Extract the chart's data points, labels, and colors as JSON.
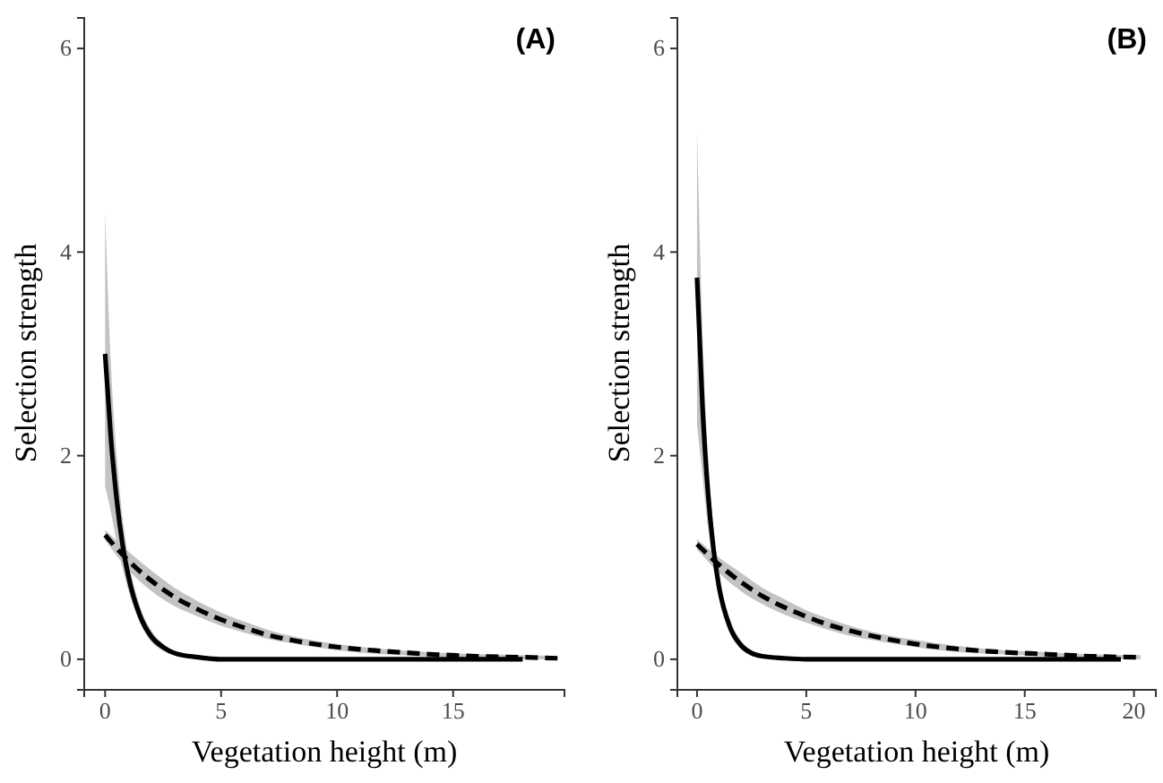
{
  "chart_data": [
    {
      "type": "line",
      "annotations": [
        "(A)"
      ],
      "xlabel": "Vegetation height (m)",
      "ylabel": "Selection strength",
      "xlim": [
        -0.9,
        19.8
      ],
      "xticks": [
        0,
        5,
        10,
        15
      ],
      "ylim": [
        -0.3,
        6.3
      ],
      "yticks": [
        0,
        2,
        4,
        6
      ],
      "grid": false,
      "marker": "none",
      "series": [
        {
          "color": "#000000",
          "line_style": "solid",
          "x": [
            0,
            0.25,
            0.5,
            0.75,
            1,
            1.5,
            2,
            2.5,
            3,
            4,
            5,
            7.5,
            10,
            12.5,
            15,
            18
          ],
          "values": [
            3.0,
            2.17,
            1.57,
            1.13,
            0.82,
            0.43,
            0.22,
            0.12,
            0.06,
            0.02,
            0,
            0,
            0,
            0,
            0,
            0
          ],
          "lower": [
            1.7,
            1.45,
            1.15,
            0.9,
            0.68,
            0.36,
            0.17,
            0.08,
            0.04,
            0.01,
            0,
            0,
            0,
            0,
            0,
            0
          ],
          "upper": [
            4.4,
            2.9,
            2.0,
            1.4,
            1.0,
            0.52,
            0.28,
            0.15,
            0.08,
            0.03,
            0.01,
            0,
            0,
            0,
            0,
            0
          ]
        },
        {
          "color": "#000000",
          "line_style": "dashed",
          "x": [
            0,
            1,
            2,
            3,
            4,
            5,
            6,
            7,
            8,
            10,
            12,
            14,
            16,
            18,
            19.5
          ],
          "values": [
            1.22,
            0.97,
            0.77,
            0.61,
            0.49,
            0.39,
            0.31,
            0.24,
            0.19,
            0.12,
            0.08,
            0.05,
            0.03,
            0.02,
            0.01
          ],
          "lower": [
            1.17,
            0.88,
            0.67,
            0.52,
            0.42,
            0.33,
            0.26,
            0.2,
            0.16,
            0.09,
            0.05,
            0.03,
            0.01,
            0,
            0
          ],
          "upper": [
            1.27,
            1.06,
            0.87,
            0.7,
            0.57,
            0.46,
            0.37,
            0.29,
            0.23,
            0.15,
            0.1,
            0.07,
            0.05,
            0.04,
            0.03
          ]
        }
      ]
    },
    {
      "type": "line",
      "annotations": [
        "(B)"
      ],
      "xlabel": "Vegetation height (m)",
      "ylabel": "Selection strength",
      "xlim": [
        -0.9,
        21
      ],
      "xticks": [
        0,
        5,
        10,
        15,
        20
      ],
      "ylim": [
        -0.3,
        6.3
      ],
      "yticks": [
        0,
        2,
        4,
        6
      ],
      "grid": false,
      "marker": "none",
      "series": [
        {
          "color": "#000000",
          "line_style": "solid",
          "x": [
            0,
            0.25,
            0.5,
            0.75,
            1,
            1.5,
            2,
            2.5,
            3,
            4,
            5,
            7.5,
            10,
            12.5,
            15,
            17.5,
            19.4
          ],
          "values": [
            3.75,
            2.48,
            1.64,
            1.09,
            0.72,
            0.32,
            0.14,
            0.06,
            0.03,
            0.01,
            0,
            0,
            0,
            0,
            0,
            0,
            0
          ],
          "lower": [
            2.3,
            1.8,
            1.3,
            0.9,
            0.6,
            0.26,
            0.1,
            0.04,
            0.02,
            0,
            0,
            0,
            0,
            0,
            0,
            0,
            0
          ],
          "upper": [
            5.2,
            3.2,
            2.0,
            1.3,
            0.85,
            0.4,
            0.19,
            0.09,
            0.05,
            0.02,
            0.01,
            0,
            0,
            0,
            0,
            0,
            0
          ]
        },
        {
          "color": "#000000",
          "line_style": "dashed",
          "x": [
            0,
            1,
            2,
            3,
            4,
            5,
            6,
            7,
            8,
            10,
            12,
            14,
            16,
            18,
            20.3
          ],
          "values": [
            1.13,
            0.93,
            0.76,
            0.62,
            0.51,
            0.42,
            0.34,
            0.28,
            0.23,
            0.15,
            0.1,
            0.07,
            0.05,
            0.03,
            0.02
          ],
          "lower": [
            1.08,
            0.85,
            0.67,
            0.54,
            0.44,
            0.36,
            0.29,
            0.23,
            0.19,
            0.12,
            0.07,
            0.05,
            0.03,
            0.01,
            0
          ],
          "upper": [
            1.18,
            1.0,
            0.85,
            0.7,
            0.59,
            0.48,
            0.4,
            0.33,
            0.27,
            0.19,
            0.13,
            0.09,
            0.07,
            0.05,
            0.04
          ]
        }
      ]
    }
  ]
}
